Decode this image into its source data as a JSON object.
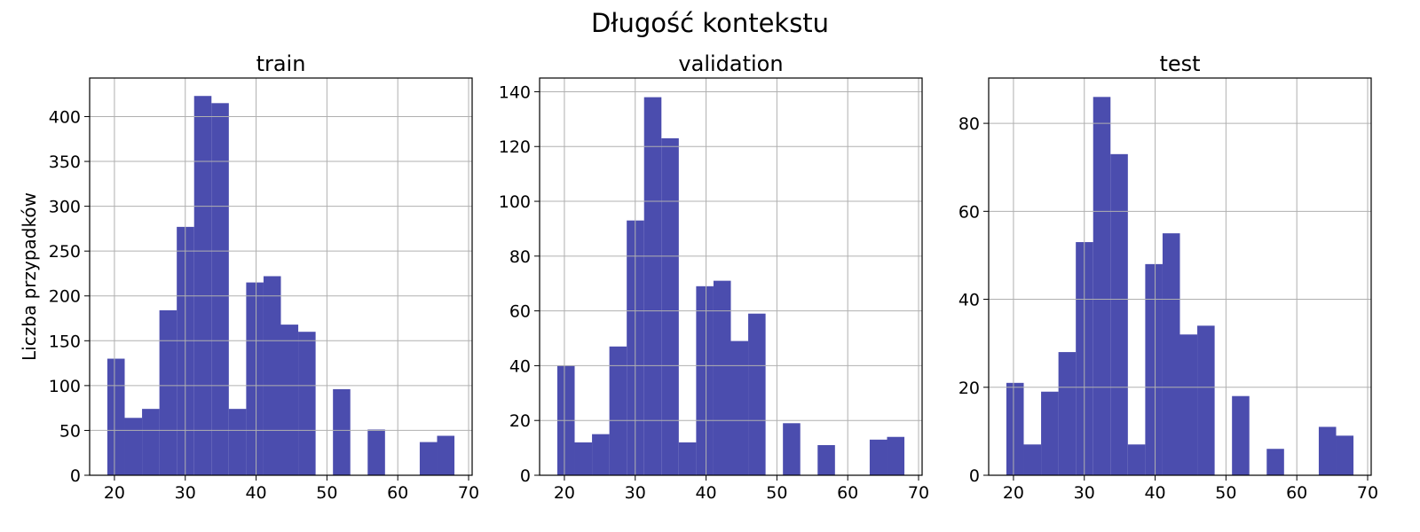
{
  "figure": {
    "title": "Długość kontekstu",
    "ylabel": "Liczba przypadków",
    "bar_color": "#4b4dae",
    "grid_color": "#b0b0b0"
  },
  "chart_data": [
    {
      "type": "bar",
      "title": "train",
      "xlim": [
        16.5,
        70.5
      ],
      "ylim": [
        0,
        443
      ],
      "xticks": [
        20,
        30,
        40,
        50,
        60,
        70
      ],
      "yticks": [
        0,
        50,
        100,
        150,
        200,
        250,
        300,
        350,
        400
      ],
      "grid": true,
      "bin_edges": [
        19.0,
        21.45,
        23.9,
        26.35,
        28.8,
        31.25,
        33.7,
        36.15,
        38.6,
        41.05,
        43.5,
        45.95,
        48.4,
        50.85,
        53.3,
        55.75,
        58.2,
        60.65,
        63.1,
        65.55,
        68.0
      ],
      "values": [
        130,
        64,
        74,
        184,
        277,
        423,
        415,
        74,
        215,
        222,
        168,
        160,
        0,
        96,
        0,
        51,
        0,
        0,
        37,
        44
      ]
    },
    {
      "type": "bar",
      "title": "validation",
      "xlim": [
        16.5,
        70.5
      ],
      "ylim": [
        0,
        145
      ],
      "xticks": [
        20,
        30,
        40,
        50,
        60,
        70
      ],
      "yticks": [
        0,
        20,
        40,
        60,
        80,
        100,
        120,
        140
      ],
      "grid": true,
      "bin_edges": [
        19.0,
        21.45,
        23.9,
        26.35,
        28.8,
        31.25,
        33.7,
        36.15,
        38.6,
        41.05,
        43.5,
        45.95,
        48.4,
        50.85,
        53.3,
        55.75,
        58.2,
        60.65,
        63.1,
        65.55,
        68.0
      ],
      "values": [
        40,
        12,
        15,
        47,
        93,
        138,
        123,
        12,
        69,
        71,
        49,
        59,
        0,
        19,
        0,
        11,
        0,
        0,
        13,
        14
      ]
    },
    {
      "type": "bar",
      "title": "test",
      "xlim": [
        16.5,
        70.5
      ],
      "ylim": [
        0,
        90.3
      ],
      "xticks": [
        20,
        30,
        40,
        50,
        60,
        70
      ],
      "yticks": [
        0,
        20,
        40,
        60,
        80
      ],
      "grid": true,
      "bin_edges": [
        19.0,
        21.45,
        23.9,
        26.35,
        28.8,
        31.25,
        33.7,
        36.15,
        38.6,
        41.05,
        43.5,
        45.95,
        48.4,
        50.85,
        53.3,
        55.75,
        58.2,
        60.65,
        63.1,
        65.55,
        68.0
      ],
      "values": [
        21,
        7,
        19,
        28,
        53,
        86,
        73,
        7,
        48,
        55,
        32,
        34,
        0,
        18,
        0,
        6,
        0,
        0,
        11,
        9
      ]
    }
  ]
}
